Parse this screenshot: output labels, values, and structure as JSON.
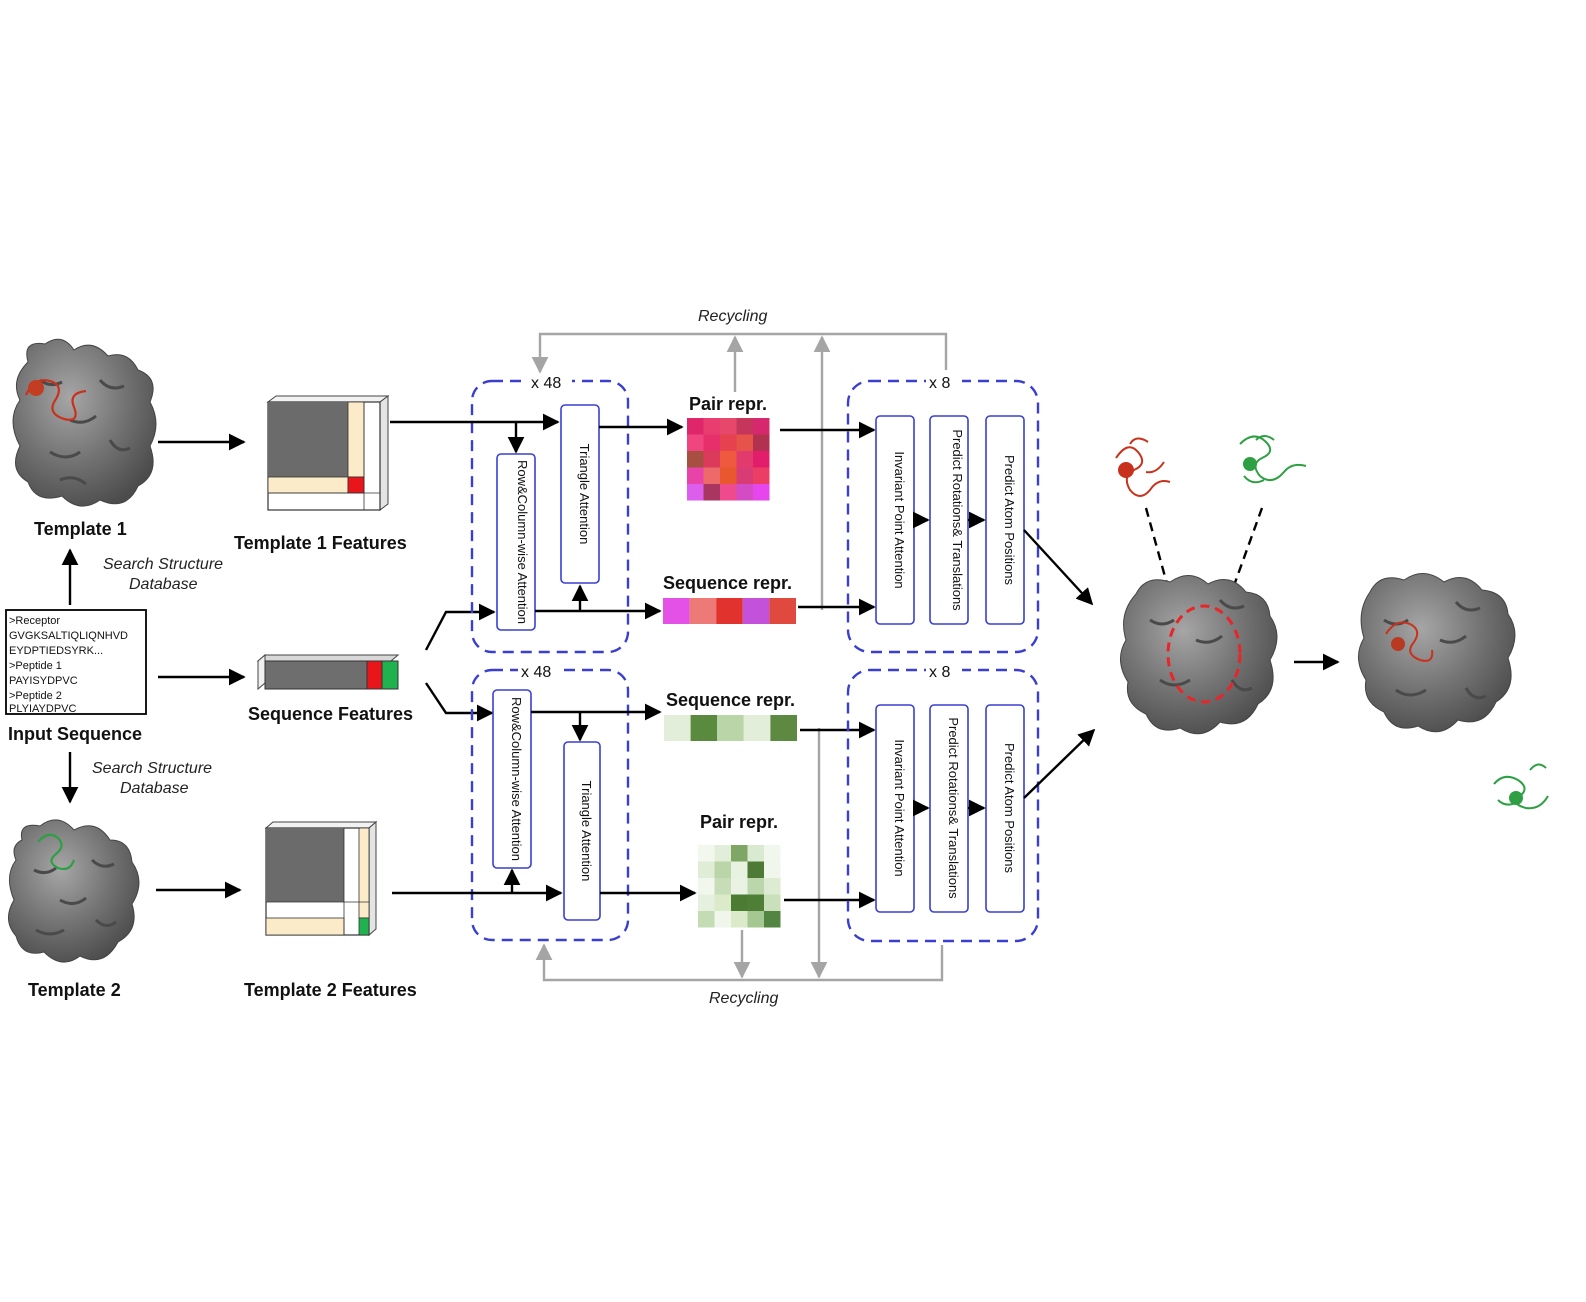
{
  "template1": {
    "title": "Template 1",
    "features_label": "Template 1 Features"
  },
  "template2": {
    "title": "Template 2",
    "features_label": "Template 2 Features"
  },
  "search_label": {
    "line1": "Search Structure",
    "line2": "Database"
  },
  "input_sequence": {
    "title": "Input Sequence",
    "lines": [
      {
        "text": ">Receptor",
        "color": "#111111"
      },
      {
        "text": "GVGKSALTIQLIQNHVD",
        "color": "#9a9a9a"
      },
      {
        "text": "EYDPTIEDSYRK...",
        "color": "#9a9a9a"
      },
      {
        "text": ">Peptide 1",
        "color": "#111111"
      },
      {
        "text": "PAYISYDPVC",
        "color": "#e8262a"
      },
      {
        "text": ">Peptide 2",
        "color": "#111111"
      },
      {
        "text": "PLYIAYDPVC",
        "color": "#2bbf5b"
      }
    ]
  },
  "sequence_features_label": "Sequence Features",
  "evoformer_repeat": "x 48",
  "structure_repeat": "x 8",
  "modules": {
    "row_column": "Row&Column-wise Attention",
    "triangle": "Triangle Attention",
    "ipa": "Invariant Point Attention",
    "rot_trans": "Predict Rotations& Translations",
    "atom_pos": "Predict Atom Positions"
  },
  "repr": {
    "pair": "Pair repr.",
    "sequence": "Sequence repr."
  },
  "recycling_label": "Recycling",
  "colors": {
    "module_border": "#3a3fd0",
    "recycling_arrow": "#a5a5a5",
    "peptide1": "#e8262a",
    "peptide2": "#2bbf5b",
    "protein_surface": "#6e6e6e",
    "template_highlight": "#fcebc8"
  },
  "pair_repr_top_colors": [
    [
      "#e0266a",
      "#e83d6e",
      "#e8476c",
      "#c6355b",
      "#d6286d"
    ],
    [
      "#f0457f",
      "#e6306b",
      "#e5414e",
      "#e5534b",
      "#b1314f"
    ],
    [
      "#a75041",
      "#dc3a5b",
      "#ef5a3e",
      "#e23a6c",
      "#e21e6a"
    ],
    [
      "#e743a8",
      "#ec6a6a",
      "#e8572e",
      "#d93c74",
      "#ec3d65"
    ],
    [
      "#dd5ded",
      "#a93660",
      "#f04a8e",
      "#d44cc4",
      "#e646ec"
    ]
  ],
  "pair_repr_bottom_colors": [
    [
      "#f3f8ef",
      "#e2eed9",
      "#7ea664",
      "#d9ead0",
      "#f2f7ee"
    ],
    [
      "#dfecd6",
      "#bad6a8",
      "#e8f2e1",
      "#4d7a35",
      "#f0f6ec"
    ],
    [
      "#f2f7ee",
      "#c6ddb7",
      "#e9f2e3",
      "#bcd6ab",
      "#dcebd2"
    ],
    [
      "#e5f0de",
      "#dbeac9",
      "#4a7c33",
      "#4f7f37",
      "#c9e0ba"
    ],
    [
      "#c4dcb4",
      "#f0f6ec",
      "#dbeac9",
      "#a5c792",
      "#538542"
    ]
  ],
  "sequence_repr_top_colors": [
    "#e451e7",
    "#ee7a78",
    "#e1322d",
    "#c451d9",
    "#e0493d"
  ],
  "sequence_repr_bottom_colors": [
    "#e2eed9",
    "#5a8a3d",
    "#bad6a8",
    "#e2eed9",
    "#5d8a40"
  ]
}
